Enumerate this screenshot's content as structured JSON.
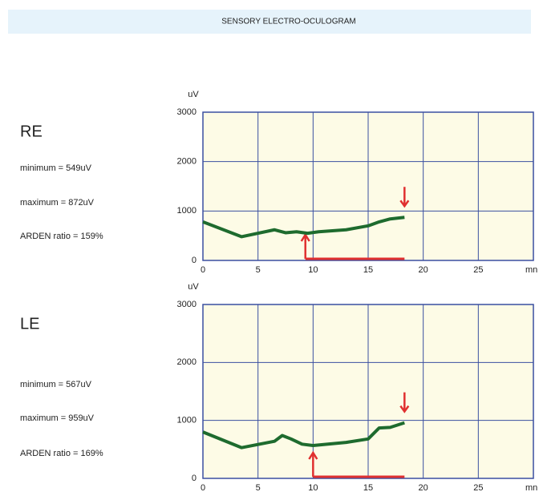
{
  "header": {
    "title": "SENSORY ELECTRO-OCULOGRAM"
  },
  "panels": [
    {
      "label": "RE",
      "lines": [
        "minimum = 549uV",
        "maximum = 872uV",
        "ARDEN ratio = 159%"
      ]
    },
    {
      "label": "LE",
      "lines": [
        "minimum = 567uV",
        "maximum = 959uV",
        "ARDEN ratio = 169%"
      ]
    }
  ],
  "chart_data": [
    {
      "type": "line",
      "y_label": "uV",
      "x_label": "mn",
      "color": "#1e6b2e",
      "x": [
        0,
        3.5,
        6.5,
        7.5,
        8.5,
        9.5,
        10.5,
        13,
        15,
        16,
        17,
        18.3
      ],
      "values": [
        780,
        480,
        620,
        560,
        580,
        549,
        580,
        620,
        700,
        780,
        840,
        872
      ],
      "xlim": [
        0,
        30
      ],
      "xticks": [
        0,
        5,
        10,
        15,
        20,
        25
      ],
      "ylim": [
        0,
        3000
      ],
      "yticks": [
        0,
        1000,
        2000,
        3000
      ],
      "grid": true,
      "light_period": [
        9.3,
        18.3
      ],
      "marker_color": "#e03030"
    },
    {
      "type": "line",
      "y_label": "uV",
      "x_label": "mn",
      "color": "#1e6b2e",
      "x": [
        0,
        3.5,
        6.5,
        7.2,
        8,
        9,
        10,
        13,
        15,
        16,
        17,
        18.3
      ],
      "values": [
        800,
        530,
        640,
        740,
        680,
        590,
        567,
        620,
        680,
        870,
        880,
        959
      ],
      "xlim": [
        0,
        30
      ],
      "xticks": [
        0,
        5,
        10,
        15,
        20,
        25
      ],
      "ylim": [
        0,
        3000
      ],
      "yticks": [
        0,
        1000,
        2000,
        3000
      ],
      "grid": true,
      "light_period": [
        10,
        18.3
      ],
      "marker_color": "#e03030"
    }
  ]
}
